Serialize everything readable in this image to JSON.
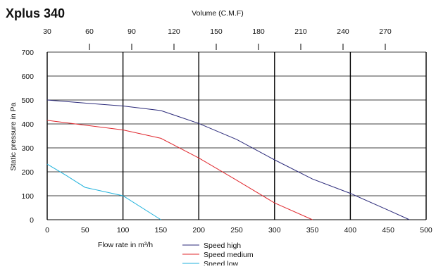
{
  "chart_data": {
    "type": "line",
    "title": "Xplus 340",
    "xlabel": "Flow rate in m³/h",
    "ylabel": "Static pressure in Pa",
    "x2label": "Volume (C.M.F)",
    "xlim": [
      0,
      500
    ],
    "ylim": [
      0,
      700
    ],
    "x_ticks": [
      0,
      50,
      100,
      150,
      200,
      250,
      300,
      350,
      400,
      450,
      500
    ],
    "y_ticks": [
      0,
      100,
      200,
      300,
      400,
      500,
      600,
      700
    ],
    "x2_ticks": [
      30,
      60,
      90,
      120,
      150,
      180,
      210,
      240,
      270
    ],
    "grid": true,
    "legend_position": "bottom",
    "series": [
      {
        "name": "Speed high",
        "color": "#2b2a7a",
        "points": [
          [
            0,
            500
          ],
          [
            50,
            487
          ],
          [
            100,
            475
          ],
          [
            150,
            456
          ],
          [
            200,
            402
          ],
          [
            250,
            335
          ],
          [
            300,
            250
          ],
          [
            350,
            170
          ],
          [
            400,
            110
          ],
          [
            450,
            40
          ],
          [
            478,
            0
          ]
        ]
      },
      {
        "name": "Speed medium",
        "color": "#e0282e",
        "points": [
          [
            0,
            415
          ],
          [
            50,
            395
          ],
          [
            100,
            375
          ],
          [
            150,
            340
          ],
          [
            200,
            258
          ],
          [
            250,
            165
          ],
          [
            300,
            70
          ],
          [
            350,
            0
          ]
        ]
      },
      {
        "name": "Speed low",
        "color": "#1fb2dc",
        "points": [
          [
            0,
            232
          ],
          [
            25,
            185
          ],
          [
            50,
            135
          ],
          [
            100,
            100
          ],
          [
            150,
            0
          ]
        ]
      }
    ]
  }
}
